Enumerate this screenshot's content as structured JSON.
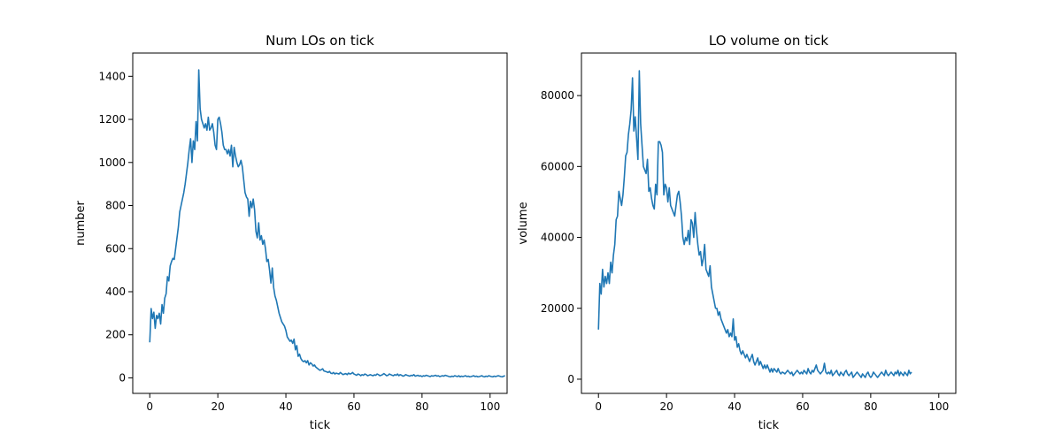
{
  "chart_data": [
    {
      "type": "line",
      "title": "Num LOs on tick",
      "xlabel": "tick",
      "ylabel": "number",
      "xlim": [
        -5,
        105
      ],
      "ylim": [
        -72,
        1508
      ],
      "xticks": [
        0,
        20,
        40,
        60,
        80,
        100
      ],
      "yticks": [
        0,
        200,
        400,
        600,
        800,
        1000,
        1200,
        1400
      ],
      "grid": false,
      "legend": "none",
      "color": "#1f77b4",
      "x_step": 0.4,
      "y": [
        165,
        322,
        275,
        305,
        230,
        290,
        275,
        300,
        250,
        340,
        300,
        370,
        390,
        470,
        450,
        520,
        540,
        555,
        550,
        600,
        650,
        700,
        770,
        800,
        830,
        860,
        900,
        950,
        1000,
        1060,
        1110,
        1000,
        1100,
        1060,
        1190,
        1100,
        1430,
        1250,
        1200,
        1180,
        1160,
        1180,
        1150,
        1210,
        1150,
        1160,
        1180,
        1140,
        1080,
        1060,
        1200,
        1210,
        1180,
        1140,
        1080,
        1060,
        1060,
        1040,
        1060,
        1030,
        1080,
        980,
        1070,
        1030,
        1000,
        980,
        990,
        1010,
        980,
        920,
        860,
        840,
        830,
        750,
        820,
        790,
        830,
        780,
        680,
        650,
        720,
        640,
        660,
        620,
        640,
        600,
        540,
        550,
        500,
        440,
        510,
        420,
        380,
        360,
        330,
        300,
        280,
        260,
        250,
        240,
        220,
        190,
        180,
        170,
        175,
        160,
        180,
        130,
        150,
        100,
        110,
        90,
        80,
        75,
        80,
        70,
        80,
        60,
        70,
        65,
        55,
        60,
        50,
        45,
        40,
        35,
        38,
        42,
        32,
        30,
        28,
        25,
        30,
        22,
        20,
        25,
        18,
        22,
        20,
        18,
        25,
        20,
        15,
        18,
        20,
        15,
        22,
        18,
        20,
        25,
        18,
        15,
        12,
        18,
        15,
        10,
        15,
        12,
        18,
        15,
        10,
        12,
        15,
        12,
        10,
        14,
        12,
        18,
        15,
        10,
        12,
        15,
        20,
        15,
        10,
        12,
        18,
        15,
        12,
        10,
        15,
        12,
        18,
        10,
        15,
        12,
        8,
        10,
        15,
        12,
        10,
        8,
        12,
        10,
        15,
        8,
        10,
        12,
        8,
        10,
        6,
        10,
        8,
        12,
        10,
        8,
        6,
        10,
        8,
        10,
        12,
        8,
        10,
        6,
        8,
        10,
        8,
        12,
        10,
        8,
        6,
        5,
        8,
        6,
        10,
        8,
        6,
        10,
        5,
        8,
        6,
        8,
        10,
        6,
        8,
        5,
        6,
        8,
        10,
        6,
        8,
        5,
        6,
        8,
        10,
        6,
        5,
        8,
        6,
        10,
        8,
        6,
        5,
        8,
        6,
        8,
        10,
        8,
        6,
        5,
        8,
        10
      ]
    },
    {
      "type": "line",
      "title": "LO volume on tick",
      "xlabel": "tick",
      "ylabel": "volume",
      "xlim": [
        -5,
        105
      ],
      "ylim": [
        -4000,
        92000
      ],
      "xticks": [
        0,
        20,
        40,
        60,
        80,
        100
      ],
      "yticks": [
        0,
        20000,
        40000,
        60000,
        80000
      ],
      "grid": false,
      "legend": "none",
      "color": "#1f77b4",
      "x_step": 0.4,
      "y": [
        14000,
        27000,
        24000,
        31000,
        26000,
        29000,
        27000,
        30000,
        27000,
        33000,
        30000,
        35000,
        38000,
        45000,
        46000,
        53000,
        51000,
        49000,
        52000,
        57000,
        63000,
        64000,
        69000,
        72000,
        76000,
        85000,
        70000,
        74000,
        68000,
        62000,
        87000,
        72000,
        66000,
        60000,
        59000,
        58000,
        62000,
        53000,
        54000,
        51000,
        49000,
        48000,
        55000,
        52000,
        67000,
        67000,
        66000,
        64000,
        52000,
        55000,
        54000,
        50000,
        54000,
        49000,
        48000,
        47000,
        46000,
        49000,
        52000,
        53000,
        50000,
        46000,
        40000,
        38000,
        40000,
        39000,
        42000,
        38000,
        45000,
        44000,
        40000,
        47000,
        42000,
        38000,
        35000,
        36000,
        32000,
        34000,
        38000,
        31000,
        30000,
        29000,
        32000,
        26000,
        24000,
        22000,
        20000,
        20000,
        18000,
        19000,
        17000,
        16000,
        15000,
        14000,
        13000,
        14000,
        12000,
        13000,
        12000,
        17000,
        11000,
        12000,
        9000,
        10000,
        8000,
        7000,
        8000,
        7000,
        6000,
        7000,
        6000,
        5000,
        6000,
        7000,
        5000,
        4000,
        5000,
        6000,
        4000,
        5000,
        4000,
        3000,
        4000,
        3000,
        4000,
        3000,
        2000,
        3000,
        2000,
        3000,
        2500,
        2000,
        3000,
        2000,
        1500,
        2000,
        1800,
        1500,
        2000,
        2500,
        2000,
        1500,
        2000,
        1000,
        1500,
        2000,
        2500,
        2000,
        1500,
        2000,
        1500,
        2500,
        2000,
        1500,
        3000,
        2000,
        1500,
        2500,
        2000,
        3000,
        4000,
        2500,
        2000,
        1500,
        2000,
        2500,
        4500,
        2000,
        1500,
        2000,
        1500,
        2500,
        1000,
        1500,
        2000,
        2500,
        1500,
        1000,
        2000,
        1500,
        1000,
        2000,
        2500,
        1500,
        1000,
        1500,
        2000,
        500,
        1000,
        1500,
        2000,
        1500,
        1000,
        500,
        1500,
        1000,
        500,
        1500,
        2000,
        1000,
        500,
        1000,
        2000,
        1500,
        1000,
        500,
        1000,
        1500,
        2000,
        1500,
        1000,
        2500,
        1500,
        1000,
        1500,
        2000,
        1500,
        1000,
        2000,
        1500,
        2500,
        1000,
        2000,
        1500,
        1000,
        2000,
        1500,
        1000,
        2500,
        1500,
        2000
      ]
    }
  ]
}
